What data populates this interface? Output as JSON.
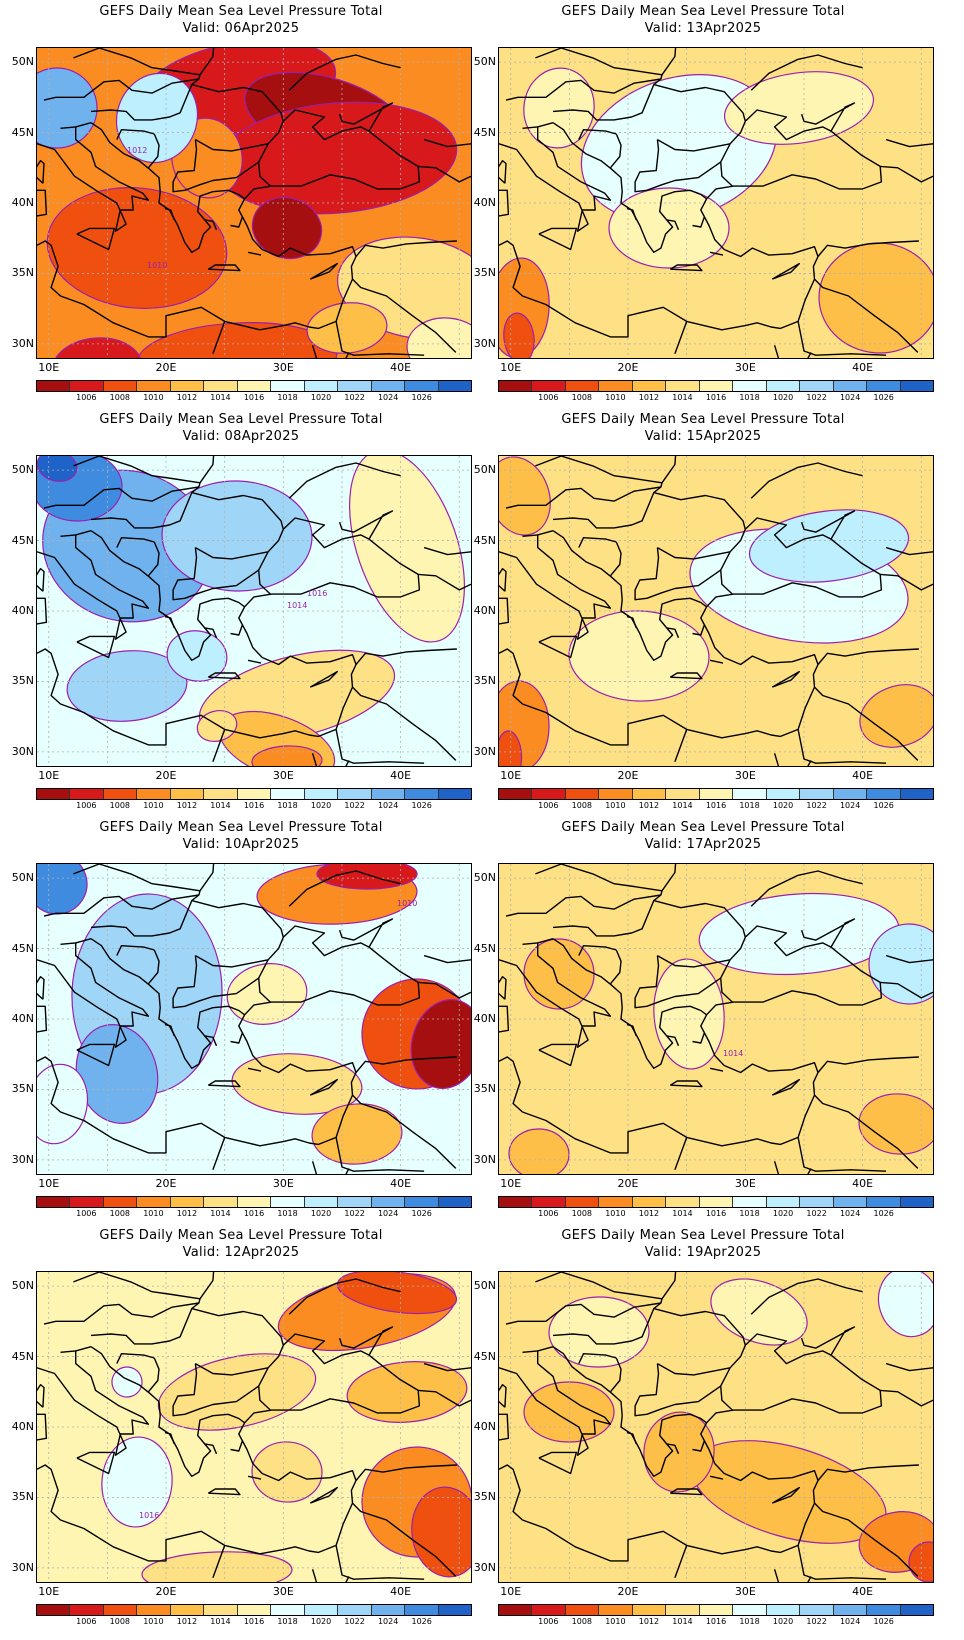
{
  "colors": {
    "levels": [
      "#a50f0f",
      "#d7191c",
      "#f0500f",
      "#fb8c22",
      "#fdbf47",
      "#fee085",
      "#fff5b3",
      "#e6ffff",
      "#bdefff",
      "#9fd5f7",
      "#70b2ee",
      "#3f8be0",
      "#2063c8"
    ],
    "contour": "#9b1faf",
    "land": "#000000",
    "grid": "#b0b0b0"
  },
  "colorbar": {
    "labels": [
      "1006",
      "1008",
      "1010",
      "1012",
      "1014",
      "1016",
      "1018",
      "1020",
      "1022",
      "1024",
      "1026"
    ]
  },
  "axes": {
    "lat_labels": [
      "50N",
      "45N",
      "40N",
      "35N",
      "30N"
    ],
    "lon_labels": [
      "10E",
      "20E",
      "30E",
      "40E"
    ]
  },
  "panels": [
    {
      "title": "GEFS Daily Mean Sea Level Pressure Total",
      "valid": "Valid: 06Apr2025",
      "base": 3,
      "blobs": [
        [
          200,
          40,
          200,
          90,
          1
        ],
        [
          290,
          70,
          170,
          80,
          0
        ],
        [
          300,
          110,
          240,
          110,
          1
        ],
        [
          100,
          200,
          180,
          120,
          2
        ],
        [
          170,
          110,
          70,
          80,
          3
        ],
        [
          250,
          180,
          70,
          60,
          0
        ],
        [
          200,
          310,
          200,
          70,
          2
        ],
        [
          60,
          320,
          90,
          60,
          1
        ],
        [
          20,
          60,
          80,
          80,
          10
        ],
        [
          120,
          70,
          80,
          90,
          8
        ],
        [
          380,
          240,
          160,
          100,
          5
        ],
        [
          310,
          280,
          80,
          50,
          4
        ],
        [
          410,
          300,
          80,
          60,
          6
        ]
      ],
      "contour_labels": [
        {
          "text": "1012",
          "x": 90,
          "y": 105
        },
        {
          "text": "1010",
          "x": 110,
          "y": 220
        }
      ]
    },
    {
      "title": "GEFS Daily Mean Sea Level Pressure Total",
      "valid": "Valid: 13Apr2025",
      "base": 5,
      "blobs": [
        [
          180,
          100,
          200,
          140,
          7
        ],
        [
          60,
          60,
          70,
          80,
          6
        ],
        [
          380,
          250,
          120,
          110,
          4
        ],
        [
          20,
          260,
          60,
          100,
          3
        ],
        [
          20,
          290,
          30,
          50,
          2
        ],
        [
          170,
          180,
          120,
          80,
          6
        ],
        [
          300,
          60,
          150,
          70,
          6
        ]
      ],
      "contour_labels": []
    },
    {
      "title": "GEFS Daily Mean Sea Level Pressure Total",
      "valid": "Valid: 08Apr2025",
      "base": 7,
      "blobs": [
        [
          90,
          90,
          170,
          150,
          10
        ],
        [
          40,
          30,
          90,
          70,
          11
        ],
        [
          20,
          10,
          40,
          30,
          12
        ],
        [
          200,
          80,
          150,
          110,
          9
        ],
        [
          90,
          230,
          120,
          70,
          9
        ],
        [
          370,
          90,
          100,
          200,
          6
        ],
        [
          260,
          240,
          200,
          80,
          5
        ],
        [
          240,
          290,
          120,
          60,
          4
        ],
        [
          250,
          305,
          70,
          30,
          3
        ],
        [
          180,
          270,
          40,
          30,
          5
        ],
        [
          160,
          200,
          60,
          50,
          8
        ]
      ],
      "contour_labels": [
        {
          "text": "1016",
          "x": 270,
          "y": 140
        },
        {
          "text": "1014",
          "x": 250,
          "y": 152
        }
      ]
    },
    {
      "title": "GEFS Daily Mean Sea Level Pressure Total",
      "valid": "Valid: 15Apr2025",
      "base": 5,
      "blobs": [
        [
          300,
          130,
          220,
          110,
          7
        ],
        [
          330,
          90,
          160,
          70,
          8
        ],
        [
          20,
          40,
          60,
          80,
          4
        ],
        [
          20,
          270,
          60,
          90,
          3
        ],
        [
          10,
          300,
          25,
          50,
          2
        ],
        [
          140,
          200,
          140,
          90,
          6
        ],
        [
          400,
          260,
          80,
          60,
          4
        ]
      ],
      "contour_labels": []
    },
    {
      "title": "GEFS Daily Mean Sea Level Pressure Total",
      "valid": "Valid: 10Apr2025",
      "base": 7,
      "blobs": [
        [
          110,
          130,
          150,
          200,
          9
        ],
        [
          80,
          210,
          80,
          100,
          10
        ],
        [
          20,
          20,
          60,
          60,
          11
        ],
        [
          300,
          30,
          160,
          60,
          3
        ],
        [
          330,
          10,
          100,
          30,
          1
        ],
        [
          380,
          170,
          110,
          110,
          2
        ],
        [
          410,
          180,
          70,
          90,
          0
        ],
        [
          260,
          220,
          130,
          60,
          5
        ],
        [
          320,
          270,
          90,
          60,
          4
        ],
        [
          230,
          130,
          80,
          60,
          6
        ],
        [
          20,
          240,
          60,
          80,
          7
        ]
      ],
      "contour_labels": [
        {
          "text": "1010",
          "x": 360,
          "y": 42
        }
      ]
    },
    {
      "title": "GEFS Daily Mean Sea Level Pressure Total",
      "valid": "Valid: 17Apr2025",
      "base": 5,
      "blobs": [
        [
          300,
          70,
          200,
          80,
          7
        ],
        [
          410,
          100,
          80,
          80,
          8
        ],
        [
          60,
          110,
          70,
          70,
          4
        ],
        [
          190,
          150,
          70,
          110,
          6
        ],
        [
          40,
          290,
          60,
          50,
          4
        ],
        [
          400,
          260,
          80,
          60,
          4
        ]
      ],
      "contour_labels": [
        {
          "text": "1014",
          "x": 224,
          "y": 192
        }
      ]
    },
    {
      "title": "GEFS Daily Mean Sea Level Pressure Total",
      "valid": "Valid: 12Apr2025",
      "base": 6,
      "blobs": [
        [
          330,
          40,
          180,
          70,
          3
        ],
        [
          360,
          20,
          120,
          40,
          2
        ],
        [
          380,
          230,
          110,
          110,
          3
        ],
        [
          410,
          260,
          70,
          90,
          2
        ],
        [
          100,
          210,
          70,
          90,
          7
        ],
        [
          90,
          110,
          30,
          30,
          7
        ],
        [
          250,
          200,
          70,
          60,
          5
        ],
        [
          200,
          120,
          160,
          70,
          5
        ],
        [
          370,
          120,
          120,
          60,
          4
        ],
        [
          180,
          300,
          150,
          40,
          5
        ]
      ],
      "contour_labels": [
        {
          "text": "1016",
          "x": 102,
          "y": 246
        }
      ]
    },
    {
      "title": "GEFS Daily Mean Sea Level Pressure Total",
      "valid": "Valid: 19Apr2025",
      "base": 5,
      "blobs": [
        [
          410,
          30,
          60,
          70,
          7
        ],
        [
          70,
          140,
          90,
          60,
          4
        ],
        [
          290,
          220,
          200,
          90,
          4
        ],
        [
          400,
          270,
          80,
          60,
          3
        ],
        [
          430,
          290,
          40,
          40,
          2
        ],
        [
          180,
          180,
          70,
          80,
          4
        ],
        [
          100,
          60,
          100,
          70,
          6
        ],
        [
          260,
          40,
          100,
          60,
          6
        ]
      ],
      "contour_labels": []
    }
  ]
}
